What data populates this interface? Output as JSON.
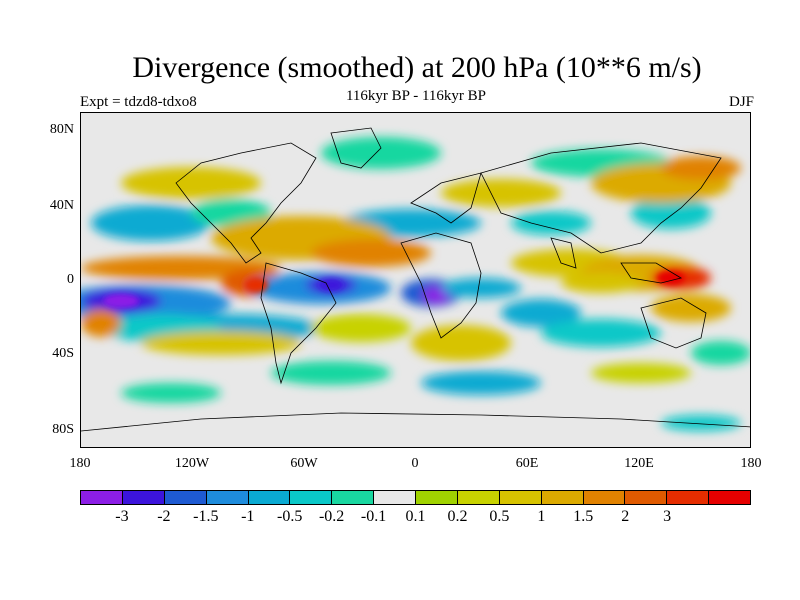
{
  "title": "Divergence (smoothed) at 200 hPa (10**6 m/s)",
  "subtitle": "116kyr BP - 116kyr BP",
  "left_label": "Expt = tdzd8-tdxo8",
  "right_label": "DJF",
  "lat_labels": [
    "80N",
    "40N",
    "0",
    "40S",
    "80S"
  ],
  "lon_labels": [
    "180",
    "120W",
    "60W",
    "0",
    "60E",
    "120E",
    "180"
  ],
  "colorbar": {
    "colors": [
      "#8c1ee6",
      "#3c14dc",
      "#1e5ad2",
      "#1e8cdc",
      "#0aaad2",
      "#0ac8c8",
      "#19d7a0",
      "#e8e8e8",
      "#a0d200",
      "#c8d200",
      "#d7c300",
      "#dcaa00",
      "#e18200",
      "#e05a00",
      "#e62d00",
      "#e60000"
    ],
    "labels": [
      "-3",
      "-2",
      "-1.5",
      "-1",
      "-0.5",
      "-0.2",
      "-0.1",
      "0.1",
      "0.2",
      "0.5",
      "1",
      "1.5",
      "2",
      "3"
    ]
  }
}
